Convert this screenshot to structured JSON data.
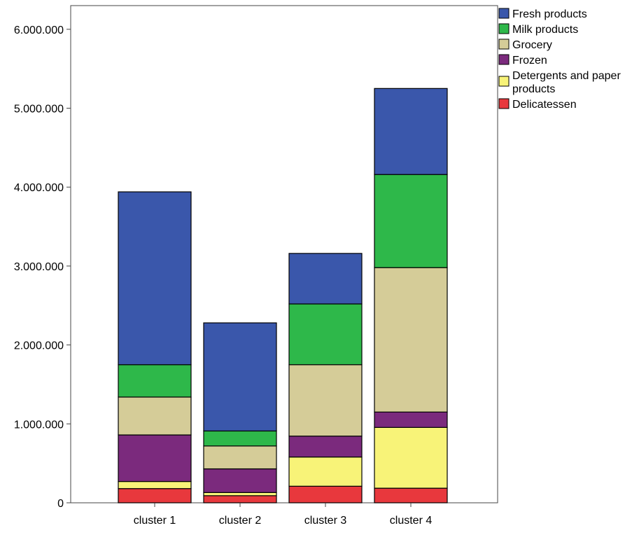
{
  "chart_data": {
    "type": "bar",
    "stacked": true,
    "title": "",
    "xlabel": "",
    "ylabel": "",
    "ylim": [
      0,
      6300000
    ],
    "yticks": [
      0,
      1000000,
      2000000,
      3000000,
      4000000,
      5000000,
      6000000
    ],
    "ytick_labels": [
      "0",
      "1.000.000",
      "2.000.000",
      "3.000.000",
      "4.000.000",
      "5.000.000",
      "6.000.000"
    ],
    "categories": [
      "cluster 1",
      "cluster 2",
      "cluster 3",
      "cluster 4"
    ],
    "legend_position": "top-right",
    "series": [
      {
        "name": "Delicatessen",
        "color": "#e8383d",
        "values": [
          180000,
          90000,
          210000,
          185000
        ]
      },
      {
        "name": "Detergents and paper products",
        "legend_lines": [
          "Detergents and paper",
          "products"
        ],
        "color": "#f8f378",
        "values": [
          90000,
          40000,
          370000,
          770000
        ]
      },
      {
        "name": "Frozen",
        "color": "#7b2a7d",
        "values": [
          590000,
          300000,
          265000,
          195000
        ]
      },
      {
        "name": "Grocery",
        "color": "#d5cc98",
        "values": [
          480000,
          290000,
          905000,
          1830000
        ]
      },
      {
        "name": "Milk products",
        "color": "#2eb84a",
        "values": [
          410000,
          190000,
          770000,
          1180000
        ]
      },
      {
        "name": "Fresh products",
        "color": "#3a57ab",
        "values": [
          2190000,
          1370000,
          640000,
          1090000
        ]
      }
    ],
    "legend_order": [
      "Fresh products",
      "Milk products",
      "Grocery",
      "Frozen",
      "Detergents and paper products",
      "Delicatessen"
    ]
  }
}
